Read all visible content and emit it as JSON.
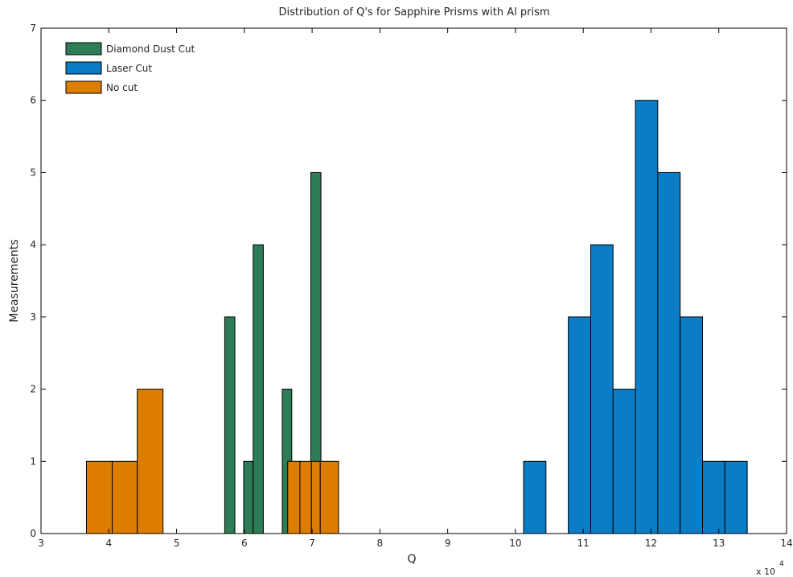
{
  "chart_data": {
    "type": "bar",
    "title": "Distribution of Q's for Sapphire Prisms with Al prism",
    "xlabel": "Q",
    "ylabel": "Measurements",
    "x_multiplier_label": "x 10",
    "x_multiplier_exponent": "4",
    "xlim": [
      3,
      14
    ],
    "ylim": [
      0,
      7
    ],
    "xticks": [
      3,
      4,
      5,
      6,
      7,
      8,
      9,
      10,
      11,
      12,
      13,
      14
    ],
    "yticks": [
      0,
      1,
      2,
      3,
      4,
      5,
      6,
      7
    ],
    "grid": false,
    "legend_position": "top-left",
    "series": [
      {
        "name": "Diamond Dust Cut",
        "color": "#2e7d56",
        "bins": [
          {
            "x0": 5.71,
            "x1": 5.86,
            "value": 3
          },
          {
            "x0": 5.99,
            "x1": 6.13,
            "value": 1
          },
          {
            "x0": 6.13,
            "x1": 6.28,
            "value": 4
          },
          {
            "x0": 6.56,
            "x1": 6.7,
            "value": 2
          },
          {
            "x0": 6.98,
            "x1": 7.13,
            "value": 5
          }
        ]
      },
      {
        "name": "Laser Cut",
        "color": "#0a7dc6",
        "bins": [
          {
            "x0": 10.12,
            "x1": 10.45,
            "value": 1
          },
          {
            "x0": 10.78,
            "x1": 11.11,
            "value": 3
          },
          {
            "x0": 11.11,
            "x1": 11.44,
            "value": 4
          },
          {
            "x0": 11.44,
            "x1": 11.77,
            "value": 2
          },
          {
            "x0": 11.77,
            "x1": 12.1,
            "value": 6
          },
          {
            "x0": 12.1,
            "x1": 12.43,
            "value": 5
          },
          {
            "x0": 12.43,
            "x1": 12.76,
            "value": 3
          },
          {
            "x0": 12.76,
            "x1": 13.09,
            "value": 1
          },
          {
            "x0": 13.09,
            "x1": 13.42,
            "value": 1
          }
        ]
      },
      {
        "name": "No cut",
        "color": "#dd7d00",
        "bins": [
          {
            "x0": 3.67,
            "x1": 4.05,
            "value": 1
          },
          {
            "x0": 4.05,
            "x1": 4.42,
            "value": 1
          },
          {
            "x0": 4.42,
            "x1": 4.8,
            "value": 2
          },
          {
            "x0": 6.64,
            "x1": 6.82,
            "value": 1
          },
          {
            "x0": 6.82,
            "x1": 6.99,
            "value": 1
          },
          {
            "x0": 6.99,
            "x1": 7.12,
            "value": 1
          },
          {
            "x0": 7.12,
            "x1": 7.39,
            "value": 1
          }
        ]
      }
    ]
  }
}
